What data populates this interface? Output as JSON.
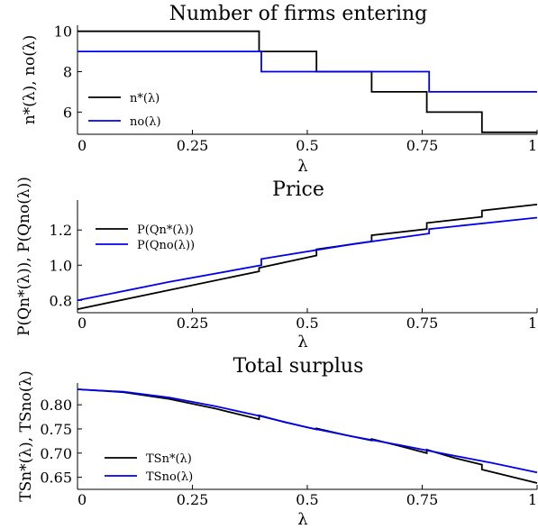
{
  "colors": {
    "n_star": "#000000",
    "n_opt": "#0000ee"
  },
  "chart_data": [
    {
      "type": "line",
      "title": "Number of firms entering",
      "xlabel": "λ",
      "ylabel": "n*(λ), no(λ)",
      "xlim": [
        0,
        1
      ],
      "ylim": [
        4.9,
        10.3
      ],
      "xticks": [
        "0",
        "0.25",
        "0.5",
        "0.75",
        "1"
      ],
      "yticks": [
        "6",
        "8",
        "10"
      ],
      "legend": "left",
      "series": [
        {
          "name": "n*(λ)",
          "color": "#000000",
          "step": true,
          "points": [
            [
              0,
              10
            ],
            [
              0.395,
              10
            ],
            [
              0.395,
              9
            ],
            [
              0.52,
              9
            ],
            [
              0.52,
              8
            ],
            [
              0.64,
              8
            ],
            [
              0.64,
              7
            ],
            [
              0.76,
              7
            ],
            [
              0.76,
              6
            ],
            [
              0.88,
              6
            ],
            [
              0.88,
              5
            ],
            [
              1,
              5
            ]
          ]
        },
        {
          "name": "no(λ)",
          "color": "#0000ee",
          "step": true,
          "points": [
            [
              0,
              9
            ],
            [
              0.4,
              9
            ],
            [
              0.4,
              8
            ],
            [
              0.765,
              8
            ],
            [
              0.765,
              7
            ],
            [
              1,
              7
            ]
          ]
        }
      ]
    },
    {
      "type": "line",
      "title": "Price",
      "xlabel": "λ",
      "ylabel": "P(Qn*(λ)), P(Qno(λ))",
      "xlim": [
        0,
        1
      ],
      "ylim": [
        0.73,
        1.37
      ],
      "xticks": [
        "0",
        "0.25",
        "0.5",
        "0.75",
        "1"
      ],
      "yticks": [
        "0.8",
        "1.0",
        "1.2"
      ],
      "legend": "top-left",
      "series": [
        {
          "name": "P(Qn*(λ))",
          "color": "#000000",
          "points": [
            [
              0,
              0.75
            ],
            [
              0.395,
              0.965
            ],
            [
              0.395,
              0.985
            ],
            [
              0.52,
              1.055
            ],
            [
              0.52,
              1.09
            ],
            [
              0.64,
              1.135
            ],
            [
              0.64,
              1.17
            ],
            [
              0.76,
              1.205
            ],
            [
              0.76,
              1.24
            ],
            [
              0.88,
              1.275
            ],
            [
              0.88,
              1.31
            ],
            [
              1,
              1.345
            ]
          ]
        },
        {
          "name": "P(Qno(λ))",
          "color": "#0000ee",
          "points": [
            [
              0,
              0.8
            ],
            [
              0.2,
              0.905
            ],
            [
              0.4,
              1.0
            ],
            [
              0.4,
              1.035
            ],
            [
              0.6,
              1.12
            ],
            [
              0.765,
              1.18
            ],
            [
              0.765,
              1.205
            ],
            [
              1,
              1.27
            ]
          ]
        }
      ]
    },
    {
      "type": "line",
      "title": "Total surplus",
      "xlabel": "λ",
      "ylabel": "TSn*(λ), TSno(λ)",
      "xlim": [
        0,
        1
      ],
      "ylim": [
        0.625,
        0.845
      ],
      "xticks": [
        "0",
        "0.25",
        "0.5",
        "0.75",
        "1"
      ],
      "yticks": [
        "0.65",
        "0.70",
        "0.75",
        "0.80"
      ],
      "legend": "bottom-left",
      "series": [
        {
          "name": "TSn*(λ)",
          "color": "#000000",
          "points": [
            [
              0,
              0.832
            ],
            [
              0.1,
              0.826
            ],
            [
              0.2,
              0.812
            ],
            [
              0.3,
              0.792
            ],
            [
              0.395,
              0.77
            ],
            [
              0.395,
              0.778
            ],
            [
              0.45,
              0.764
            ],
            [
              0.52,
              0.749
            ],
            [
              0.52,
              0.751
            ],
            [
              0.58,
              0.738
            ],
            [
              0.64,
              0.726
            ],
            [
              0.64,
              0.729
            ],
            [
              0.7,
              0.715
            ],
            [
              0.76,
              0.7
            ],
            [
              0.76,
              0.707
            ],
            [
              0.82,
              0.69
            ],
            [
              0.88,
              0.676
            ],
            [
              0.88,
              0.666
            ],
            [
              0.94,
              0.652
            ],
            [
              1,
              0.638
            ]
          ]
        },
        {
          "name": "TSno(λ)",
          "color": "#0000ee",
          "points": [
            [
              0,
              0.832
            ],
            [
              0.1,
              0.827
            ],
            [
              0.2,
              0.815
            ],
            [
              0.3,
              0.797
            ],
            [
              0.4,
              0.776
            ],
            [
              0.5,
              0.753
            ],
            [
              0.6,
              0.734
            ],
            [
              0.7,
              0.717
            ],
            [
              0.8,
              0.698
            ],
            [
              0.9,
              0.68
            ],
            [
              1,
              0.66
            ]
          ]
        }
      ]
    }
  ]
}
